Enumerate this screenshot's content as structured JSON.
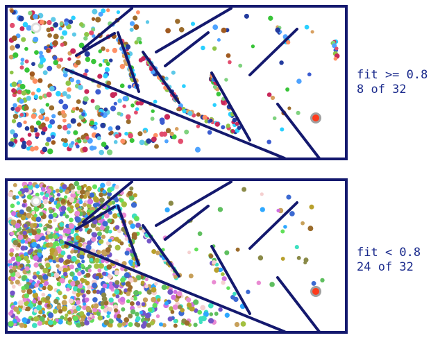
{
  "panels": [
    {
      "id": "top",
      "line1": "fit >= 0.8",
      "line2": "8 of 32",
      "palette": [
        "#3b5bd0",
        "#2ad0ff",
        "#38c438",
        "#c8285a",
        "#9b6c2c",
        "#d8a060",
        "#ff8f64",
        "#7fd27f",
        "#233b9e",
        "#5ec9e8",
        "#a05a20",
        "#e24d6e",
        "#4fa3ff",
        "#8ec548"
      ],
      "density": "medium"
    },
    {
      "id": "bottom",
      "line1": "fit < 0.8",
      "line2": "24 of 32",
      "palette": [
        "#3c6ad2",
        "#3ee0c0",
        "#62e05a",
        "#b8a02c",
        "#e98ad2",
        "#f5d0d0",
        "#9b6c2c",
        "#7355c8",
        "#a3c040",
        "#c7a05a",
        "#2ea8ff",
        "#5fbf5f",
        "#d070e0",
        "#8a8a48"
      ],
      "density": "high"
    }
  ],
  "colors": {
    "wall": "#14196e",
    "goal": "#ff3a1a",
    "goal_ring": "#a0a0a0",
    "start_ring": "#dddddd",
    "caption": "#1a2a8c"
  }
}
